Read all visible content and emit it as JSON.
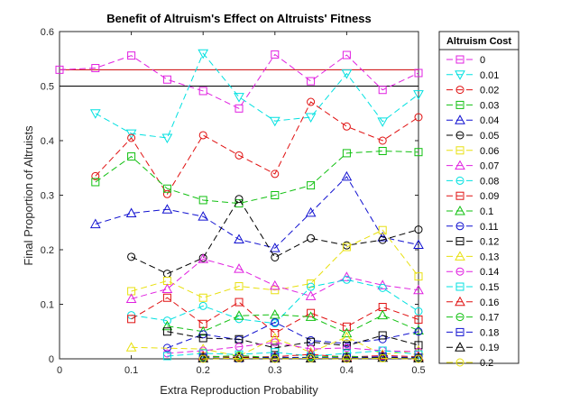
{
  "chart_data": {
    "type": "line",
    "title": "Benefit of Altruism's Effect on Altruists' Fitness",
    "xlabel": "Extra Reproduction Probability",
    "ylabel": "Final Proportion of Altruists",
    "xlim": [
      0,
      0.5
    ],
    "ylim": [
      0,
      0.6
    ],
    "xticks": [
      "0",
      "0.1",
      "0.2",
      "0.3",
      "0.4",
      "0.5"
    ],
    "yticks": [
      "0",
      "0.1",
      "0.2",
      "0.3",
      "0.4",
      "0.5",
      "0.6"
    ],
    "grid": false,
    "legend": {
      "title": "Altruism Cost",
      "placement": "right-outside"
    },
    "reference_lines": [
      {
        "y": 0.53,
        "color": "#cc0000"
      },
      {
        "y": 0.5,
        "color": "#000000"
      }
    ],
    "x": [
      0,
      0.05,
      0.1,
      0.15,
      0.2,
      0.25,
      0.3,
      0.35,
      0.4,
      0.45,
      0.5
    ],
    "series": [
      {
        "name": "0",
        "color": "#e020e0",
        "marker": "square",
        "values": [
          0.53,
          0.533,
          0.556,
          0.512,
          0.491,
          0.459,
          0.558,
          0.509,
          0.557,
          0.493,
          0.524
        ]
      },
      {
        "name": "0.01",
        "color": "#00e0e0",
        "marker": "tri-down",
        "values": [
          null,
          0.45,
          0.413,
          0.405,
          0.56,
          0.48,
          0.436,
          0.443,
          0.523,
          0.435,
          0.485
        ]
      },
      {
        "name": "0.02",
        "color": "#e01010",
        "marker": "circle",
        "values": [
          null,
          0.335,
          0.405,
          0.302,
          0.41,
          0.373,
          0.339,
          0.471,
          0.426,
          0.4,
          0.443
        ]
      },
      {
        "name": "0.03",
        "color": "#10c010",
        "marker": "square",
        "values": [
          null,
          0.324,
          0.371,
          0.312,
          0.291,
          0.285,
          0.3,
          0.318,
          0.377,
          0.381,
          0.379
        ]
      },
      {
        "name": "0.04",
        "color": "#1010d0",
        "marker": "triangle",
        "values": [
          null,
          0.247,
          0.267,
          0.274,
          0.261,
          0.219,
          0.203,
          0.268,
          0.334,
          0.223,
          0.209
        ]
      },
      {
        "name": "0.05",
        "color": "#000000",
        "marker": "circle",
        "values": [
          null,
          null,
          0.187,
          0.156,
          0.185,
          0.293,
          0.186,
          0.221,
          0.208,
          0.218,
          0.237
        ]
      },
      {
        "name": "0.06",
        "color": "#e8e010",
        "marker": "square",
        "values": [
          null,
          null,
          0.124,
          0.143,
          0.112,
          0.133,
          0.126,
          0.138,
          0.205,
          0.236,
          0.151
        ]
      },
      {
        "name": "0.07",
        "color": "#e020e0",
        "marker": "triangle",
        "values": [
          null,
          null,
          0.11,
          0.128,
          0.183,
          0.165,
          0.134,
          0.115,
          0.15,
          0.135,
          0.126
        ]
      },
      {
        "name": "0.08",
        "color": "#00e0e0",
        "marker": "circle",
        "values": [
          null,
          null,
          0.08,
          0.07,
          0.097,
          0.073,
          0.065,
          0.132,
          0.145,
          0.13,
          0.087
        ]
      },
      {
        "name": "0.09",
        "color": "#e01010",
        "marker": "square",
        "values": [
          null,
          null,
          0.073,
          0.112,
          0.064,
          0.104,
          0.047,
          0.084,
          0.059,
          0.095,
          0.072
        ]
      },
      {
        "name": "0.1",
        "color": "#10c010",
        "marker": "triangle",
        "values": [
          null,
          null,
          null,
          0.06,
          0.05,
          0.079,
          0.081,
          0.077,
          0.047,
          0.08,
          0.052
        ]
      },
      {
        "name": "0.11",
        "color": "#1010d0",
        "marker": "circle",
        "values": [
          null,
          null,
          null,
          0.02,
          0.045,
          0.035,
          0.067,
          0.034,
          0.028,
          0.036,
          0.05
        ]
      },
      {
        "name": "0.12",
        "color": "#000000",
        "marker": "square",
        "values": [
          null,
          null,
          null,
          0.05,
          0.038,
          0.036,
          0.02,
          0.031,
          0.024,
          0.043,
          0.025
        ]
      },
      {
        "name": "0.13",
        "color": "#e8e010",
        "marker": "triangle",
        "values": [
          null,
          null,
          0.021,
          null,
          0.018,
          0.005,
          0.038,
          0.012,
          0.04,
          0.008,
          0.015
        ]
      },
      {
        "name": "0.14",
        "color": "#e020e0",
        "marker": "circle",
        "values": [
          null,
          null,
          null,
          0.01,
          0.015,
          0.022,
          0.03,
          0.018,
          0.02,
          0.015,
          0.013
        ]
      },
      {
        "name": "0.15",
        "color": "#00e0e0",
        "marker": "square",
        "values": [
          null,
          null,
          null,
          0.005,
          0.01,
          0.008,
          0.012,
          0.005,
          0.01,
          0.015,
          0.008
        ]
      },
      {
        "name": "0.16",
        "color": "#e01010",
        "marker": "triangle",
        "values": [
          null,
          null,
          null,
          null,
          0.005,
          0.003,
          0.004,
          0.008,
          0.003,
          0.006,
          0.004
        ]
      },
      {
        "name": "0.17",
        "color": "#10c010",
        "marker": "circle",
        "values": [
          null,
          null,
          null,
          null,
          0.003,
          0.006,
          0.002,
          0.003,
          0.005,
          0.002,
          0.003
        ]
      },
      {
        "name": "0.18",
        "color": "#1010d0",
        "marker": "square",
        "values": [
          null,
          null,
          null,
          null,
          0.002,
          0.001,
          0.003,
          0.002,
          0.002,
          0.004,
          0.002
        ]
      },
      {
        "name": "0.19",
        "color": "#000000",
        "marker": "triangle",
        "values": [
          null,
          null,
          null,
          null,
          0.001,
          0.002,
          0.001,
          0.001,
          0.001,
          0.002,
          0.001
        ]
      },
      {
        "name": "0.2",
        "color": "#e8e010",
        "marker": "circle",
        "values": [
          null,
          null,
          null,
          null,
          0.0,
          0.001,
          0.0,
          0.001,
          0.0,
          0.001,
          0.0
        ]
      }
    ]
  }
}
